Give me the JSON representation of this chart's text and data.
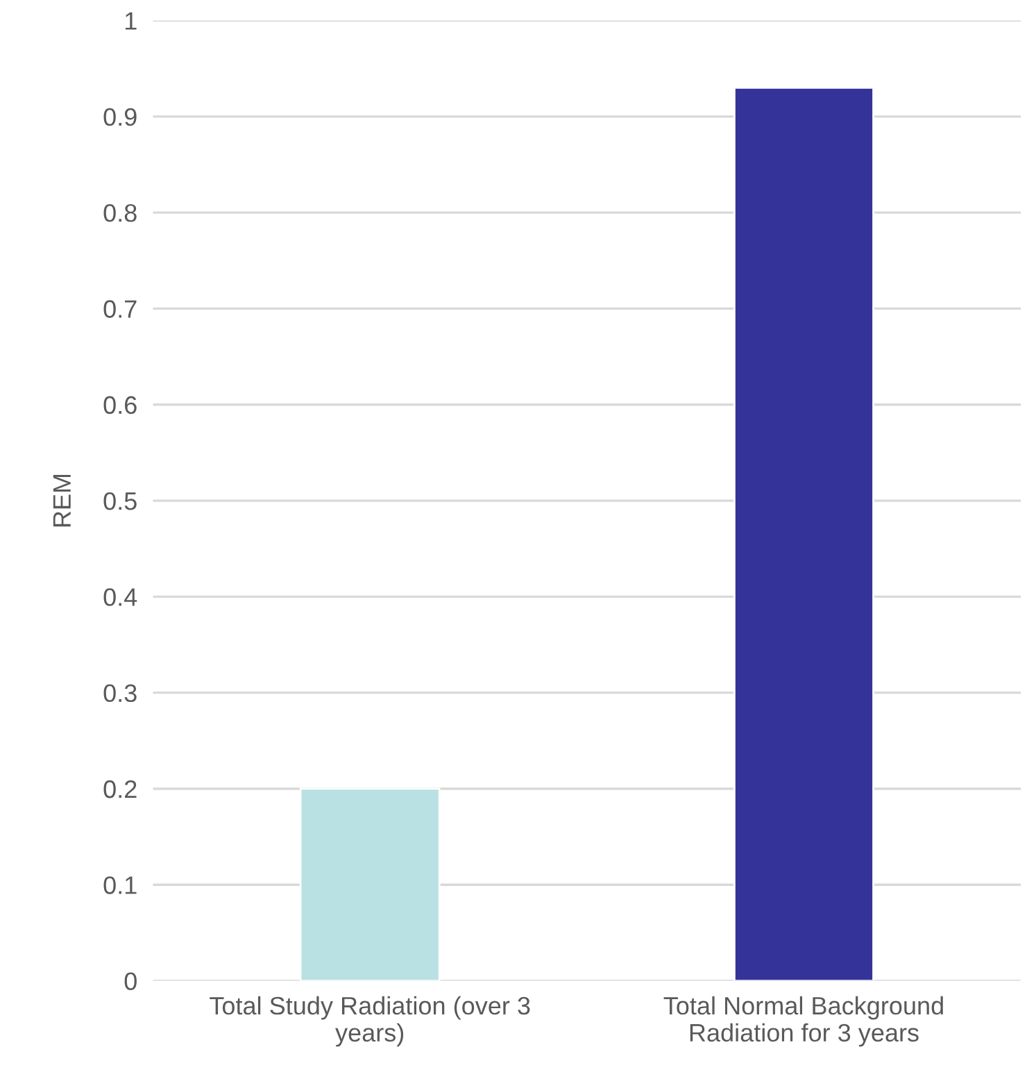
{
  "chart_data": {
    "type": "bar",
    "ylabel": "REM",
    "categories": [
      "Total Study Radiation (over 3\nyears)",
      "Total Normal Background\nRadiation for 3 years"
    ],
    "values": [
      0.2,
      0.93
    ],
    "colors": [
      "#b9e0e3",
      "#333399"
    ],
    "ylim": [
      0,
      1
    ],
    "yticks": [
      0,
      0.1,
      0.2,
      0.3,
      0.4,
      0.5,
      0.6,
      0.7,
      0.8,
      0.9,
      1
    ],
    "grid": "y"
  }
}
